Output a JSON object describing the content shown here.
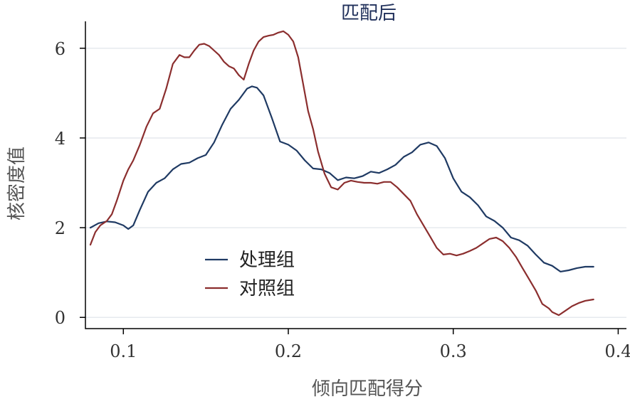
{
  "chart_data": {
    "type": "line",
    "title": "匹配后",
    "xlabel": "倾向匹配得分",
    "ylabel": "核密度值",
    "xlim": [
      0.077,
      0.405
    ],
    "ylim": [
      -0.25,
      6.6
    ],
    "xticks": [
      0.1,
      0.2,
      0.3,
      0.4
    ],
    "xtick_labels": [
      "0.1",
      "0.2",
      "0.3",
      "0.4"
    ],
    "yticks": [
      0,
      2,
      4,
      6
    ],
    "ytick_labels": [
      "0",
      "2",
      "4",
      "6"
    ],
    "grid": true,
    "legend_position": "lower-left inside",
    "series": [
      {
        "name": "处理组",
        "color": "#1f3a63",
        "x": [
          0.08,
          0.085,
          0.09,
          0.095,
          0.1,
          0.103,
          0.106,
          0.11,
          0.115,
          0.12,
          0.125,
          0.13,
          0.135,
          0.14,
          0.145,
          0.15,
          0.155,
          0.16,
          0.165,
          0.17,
          0.175,
          0.178,
          0.181,
          0.185,
          0.19,
          0.195,
          0.2,
          0.205,
          0.21,
          0.215,
          0.22,
          0.225,
          0.23,
          0.235,
          0.24,
          0.245,
          0.25,
          0.255,
          0.26,
          0.265,
          0.27,
          0.275,
          0.28,
          0.285,
          0.29,
          0.295,
          0.3,
          0.305,
          0.31,
          0.315,
          0.32,
          0.325,
          0.33,
          0.335,
          0.34,
          0.345,
          0.35,
          0.355,
          0.36,
          0.365,
          0.37,
          0.375,
          0.38,
          0.385
        ],
        "y": [
          2.0,
          2.1,
          2.14,
          2.12,
          2.05,
          1.97,
          2.05,
          2.4,
          2.8,
          3.0,
          3.1,
          3.3,
          3.42,
          3.45,
          3.55,
          3.62,
          3.9,
          4.3,
          4.65,
          4.85,
          5.1,
          5.15,
          5.12,
          4.95,
          4.45,
          3.92,
          3.85,
          3.72,
          3.5,
          3.32,
          3.3,
          3.22,
          3.06,
          3.12,
          3.1,
          3.15,
          3.25,
          3.22,
          3.3,
          3.4,
          3.58,
          3.68,
          3.85,
          3.9,
          3.82,
          3.55,
          3.1,
          2.8,
          2.68,
          2.5,
          2.25,
          2.15,
          2.0,
          1.78,
          1.72,
          1.6,
          1.4,
          1.22,
          1.15,
          1.02,
          1.05,
          1.1,
          1.13,
          1.13
        ]
      },
      {
        "name": "对照组",
        "color": "#8b2e2e",
        "x": [
          0.08,
          0.083,
          0.086,
          0.09,
          0.093,
          0.096,
          0.1,
          0.103,
          0.106,
          0.11,
          0.114,
          0.118,
          0.122,
          0.126,
          0.13,
          0.134,
          0.137,
          0.14,
          0.143,
          0.146,
          0.149,
          0.152,
          0.155,
          0.158,
          0.161,
          0.164,
          0.167,
          0.17,
          0.173,
          0.176,
          0.179,
          0.182,
          0.185,
          0.188,
          0.191,
          0.194,
          0.197,
          0.2,
          0.203,
          0.206,
          0.209,
          0.212,
          0.215,
          0.218,
          0.222,
          0.226,
          0.23,
          0.234,
          0.238,
          0.242,
          0.246,
          0.25,
          0.254,
          0.258,
          0.262,
          0.266,
          0.27,
          0.274,
          0.278,
          0.282,
          0.286,
          0.29,
          0.294,
          0.298,
          0.302,
          0.306,
          0.31,
          0.314,
          0.318,
          0.322,
          0.326,
          0.33,
          0.334,
          0.338,
          0.342,
          0.346,
          0.35,
          0.354,
          0.358,
          0.36,
          0.364,
          0.368,
          0.372,
          0.376,
          0.38,
          0.385
        ],
        "y": [
          1.62,
          1.9,
          2.05,
          2.15,
          2.3,
          2.6,
          3.05,
          3.3,
          3.5,
          3.85,
          4.25,
          4.55,
          4.65,
          5.1,
          5.65,
          5.85,
          5.8,
          5.8,
          5.95,
          6.08,
          6.1,
          6.05,
          5.95,
          5.85,
          5.7,
          5.6,
          5.55,
          5.4,
          5.3,
          5.65,
          5.95,
          6.15,
          6.25,
          6.28,
          6.3,
          6.35,
          6.38,
          6.3,
          6.15,
          5.8,
          5.2,
          4.6,
          4.2,
          3.7,
          3.2,
          2.9,
          2.85,
          3.0,
          3.05,
          3.02,
          3.0,
          3.0,
          2.98,
          3.02,
          3.02,
          2.9,
          2.75,
          2.6,
          2.3,
          2.05,
          1.8,
          1.55,
          1.4,
          1.42,
          1.38,
          1.42,
          1.48,
          1.55,
          1.65,
          1.75,
          1.78,
          1.7,
          1.55,
          1.35,
          1.1,
          0.85,
          0.6,
          0.3,
          0.2,
          0.12,
          0.05,
          0.15,
          0.25,
          0.32,
          0.37,
          0.4
        ]
      }
    ]
  }
}
